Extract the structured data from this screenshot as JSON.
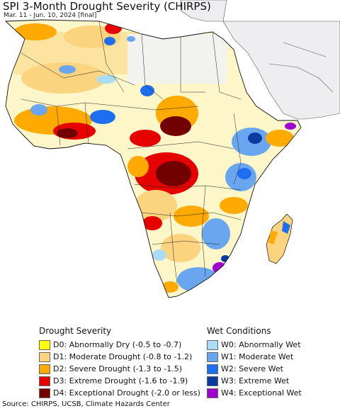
{
  "header": {
    "title": "SPI 3-Month Drought Severity (CHIRPS)",
    "subtitle": "Mar. 11 - Jun. 10, 2024 [final]"
  },
  "colors": {
    "ocean": "#ffffff",
    "land_no_data": "#eeedf0",
    "border": "#111111"
  },
  "legend": {
    "drought": {
      "heading": "Drought Severity",
      "items": [
        {
          "label": "D0: Abnormally Dry (-0.5 to -0.7)",
          "color": "#ffff00"
        },
        {
          "label": "D1: Moderate Drought (-0.8 to -1.2)",
          "color": "#fcd37f"
        },
        {
          "label": "D2: Severe Drought (-1.3 to -1.5)",
          "color": "#ffaa00"
        },
        {
          "label": "D3: Extreme Drought (-1.6 to -1.9)",
          "color": "#e60000"
        },
        {
          "label": "D4: Exceptional Drought (-2.0 or less)",
          "color": "#730000"
        }
      ]
    },
    "wet": {
      "heading": "Wet Conditions",
      "items": [
        {
          "label": "W0: Abnormally Wet",
          "color": "#aaddf5"
        },
        {
          "label": "W1: Moderate Wet",
          "color": "#6aa6f0"
        },
        {
          "label": "W2: Severe Wet",
          "color": "#1e6ef0"
        },
        {
          "label": "W3: Extreme Wet",
          "color": "#0a3ca0"
        },
        {
          "label": "W4: Exceptional Wet",
          "color": "#a000d0"
        }
      ]
    }
  },
  "footer": {
    "source": "Source: CHIRPS, UCSB, Climate Hazards Center"
  }
}
